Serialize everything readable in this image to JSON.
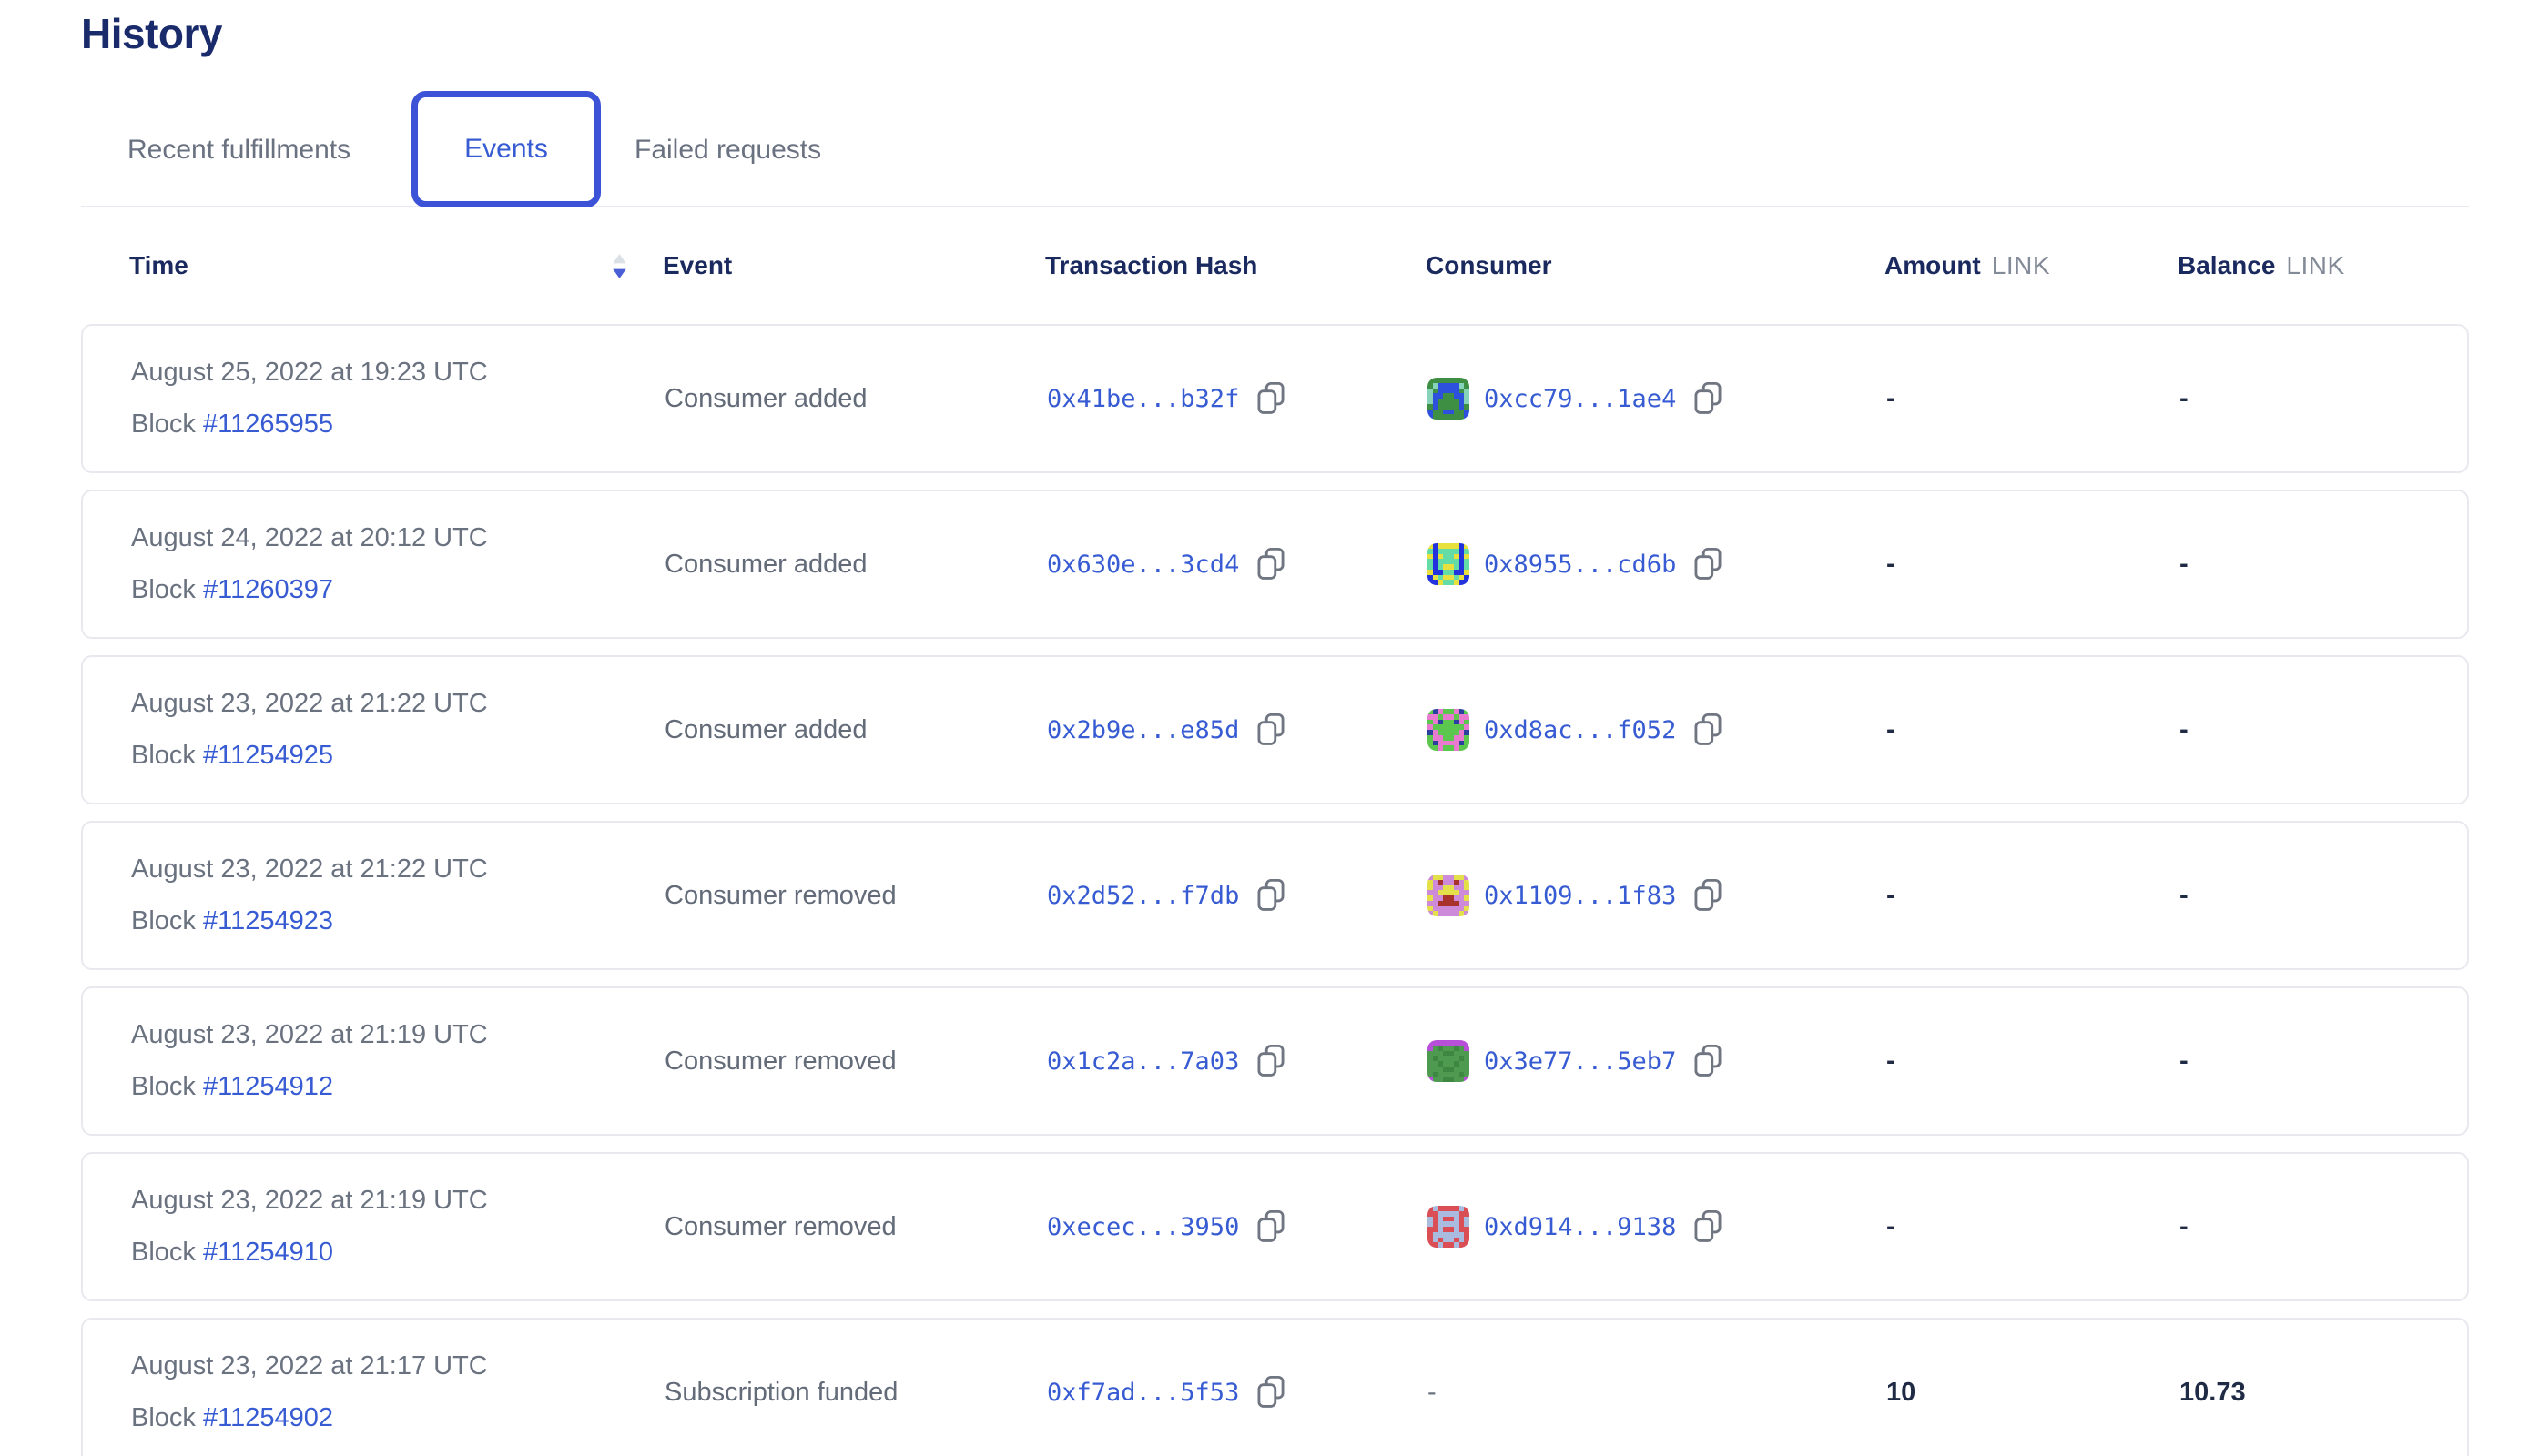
{
  "page": {
    "title": "History"
  },
  "colors": {
    "accent_blue": "#375bd2",
    "tab_border_blue": "#3c53d7",
    "heading_navy": "#1a2b6b",
    "header_text_navy": "#1b2a5e",
    "body_gray": "#6a7280",
    "card_border": "#e7e9ee",
    "sort_active": "#4a5fd5",
    "sort_inactive": "#dbdfe6",
    "copy_icon_gray": "#6f7581"
  },
  "tabs": [
    {
      "label": "Recent fulfillments",
      "active": false
    },
    {
      "label": "Events",
      "active": true
    },
    {
      "label": "Failed requests",
      "active": false
    }
  ],
  "table": {
    "headers": {
      "time": "Time",
      "event": "Event",
      "tx_hash": "Transaction Hash",
      "consumer": "Consumer",
      "amount": "Amount",
      "balance": "Balance",
      "unit": "LINK"
    },
    "sort": {
      "column": "time",
      "direction": "desc"
    },
    "block_label": "Block",
    "rows": [
      {
        "date": "August 25, 2022 at 19:23 UTC",
        "block": "#11265955",
        "event": "Consumer added",
        "tx_hash": "0x41be...b32f",
        "consumer": "0xcc79...1ae4",
        "amount": "-",
        "balance": "-",
        "avatar": {
          "palette": [
            "#3e8e44",
            "#2d50dd",
            "#86d3b9"
          ],
          "pixels": [
            "00000000",
            "02111120",
            "20111102",
            "21100112",
            "21000012",
            "01000010",
            "10011001",
            "10000001"
          ]
        }
      },
      {
        "date": "August 24, 2022 at 20:12 UTC",
        "block": "#11260397",
        "event": "Consumer added",
        "tx_hash": "0x630e...3cd4",
        "consumer": "0x8955...cd6b",
        "amount": "-",
        "balance": "-",
        "avatar": {
          "palette": [
            "#2233dd",
            "#e8e03c",
            "#63dca6"
          ],
          "pixels": [
            "10111101",
            "20222202",
            "10122101",
            "20222202",
            "20211202",
            "10022001",
            "01211210",
            "00122100"
          ]
        }
      },
      {
        "date": "August 23, 2022 at 21:22 UTC",
        "block": "#11254925",
        "event": "Consumer added",
        "tx_hash": "0x2b9e...e85d",
        "consumer": "0xd8ac...f052",
        "amount": "-",
        "balance": "-",
        "avatar": {
          "palette": [
            "#5bc74e",
            "#e87bd0",
            "#2b3f9e"
          ],
          "pixels": [
            "02100120",
            "11011011",
            "01200210",
            "10000001",
            "21000012",
            "01100110",
            "02111120",
            "00100100"
          ]
        }
      },
      {
        "date": "August 23, 2022 at 21:22 UTC",
        "block": "#11254923",
        "event": "Consumer removed",
        "tx_hash": "0x2d52...f7db",
        "consumer": "0x1109...1f83",
        "amount": "-",
        "balance": "-",
        "avatar": {
          "palette": [
            "#cc8ad8",
            "#e3e04a",
            "#a8322c"
          ],
          "pixels": [
            "01100110",
            "10200201",
            "10011001",
            "00111100",
            "10022001",
            "00222200",
            "10000001",
            "01000010"
          ]
        }
      },
      {
        "date": "August 23, 2022 at 21:19 UTC",
        "block": "#11254912",
        "event": "Consumer removed",
        "tx_hash": "0x1c2a...7a03",
        "consumer": "0x3e77...5eb7",
        "amount": "-",
        "balance": "-",
        "avatar": {
          "palette": [
            "#4e9a51",
            "#b84fd8",
            "#3d8742"
          ],
          "pixels": [
            "11111111",
            "10200201",
            "00022000",
            "02000020",
            "00200200",
            "00022000",
            "02000020",
            "10022001"
          ]
        }
      },
      {
        "date": "August 23, 2022 at 21:19 UTC",
        "block": "#11254910",
        "event": "Consumer removed",
        "tx_hash": "0xecec...3950",
        "consumer": "0xd914...9138",
        "amount": "-",
        "balance": "-",
        "avatar": {
          "palette": [
            "#d94f55",
            "#a9bce0",
            "#c23d45"
          ],
          "pixels": [
            "01000010",
            "00111100",
            "10100101",
            "10111101",
            "00100100",
            "01111110",
            "01011010",
            "00100100"
          ]
        }
      },
      {
        "date": "August 23, 2022 at 21:17 UTC",
        "block": "#11254902",
        "event": "Subscription funded",
        "tx_hash": "0xf7ad...5f53",
        "consumer": "-",
        "amount": "10",
        "balance": "10.73",
        "avatar": null
      }
    ]
  }
}
